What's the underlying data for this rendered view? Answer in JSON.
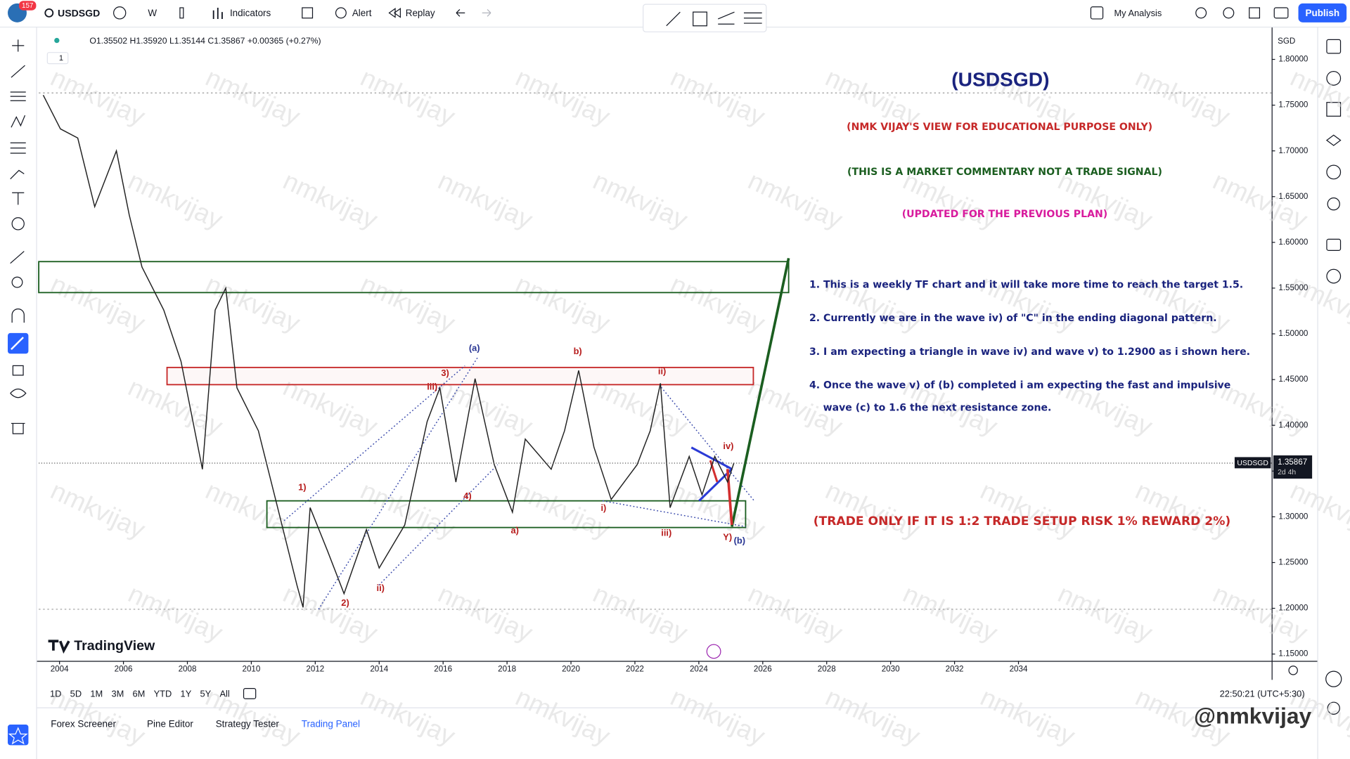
{
  "toolbar": {
    "notifications": "157",
    "symbol": "USDSGD",
    "interval": "W",
    "indicators": "Indicators",
    "alert": "Alert",
    "replay": "Replay",
    "layout": "My Analysis",
    "publish": "Publish"
  },
  "legend": {
    "ohlc": "O1.35502 H1.35920 L1.35144 C1.35867 +0.00365 (+0.27%)",
    "collapse": "1"
  },
  "chart_data": {
    "type": "line",
    "color": "#222222",
    "x": [
      2003.49,
      2004.03,
      2004.57,
      2005.1,
      2005.78,
      2006.18,
      2006.58,
      2007.26,
      2007.8,
      2008.47,
      2008.87,
      2009.2,
      2009.55,
      2010.22,
      2010.76,
      2011.43,
      2011.62,
      2011.84,
      2012.38,
      2012.9,
      2013.6,
      2014.0,
      2014.8,
      2015.5,
      2015.9,
      2016.4,
      2017.0,
      2017.6,
      2018.17,
      2018.57,
      2019.38,
      2019.8,
      2020.24,
      2020.72,
      2021.26,
      2022.07,
      2022.48,
      2022.8,
      2023.1,
      2023.7,
      2024.1,
      2024.5,
      2024.9,
      2025.1
    ],
    "values": [
      1.761,
      1.724,
      1.714,
      1.639,
      1.7,
      1.63,
      1.573,
      1.526,
      1.47,
      1.352,
      1.526,
      1.55,
      1.441,
      1.394,
      1.319,
      1.225,
      1.201,
      1.31,
      1.263,
      1.216,
      1.286,
      1.244,
      1.291,
      1.404,
      1.441,
      1.338,
      1.451,
      1.357,
      1.305,
      1.385,
      1.352,
      1.394,
      1.46,
      1.376,
      1.319,
      1.357,
      1.394,
      1.446,
      1.31,
      1.366,
      1.324,
      1.366,
      1.338,
      1.359
    ],
    "xlim": [
      2003.35,
      2041.92
    ],
    "ylim": [
      1.1425,
      1.832
    ],
    "xticks": [
      2004,
      2006,
      2008,
      2010,
      2012,
      2014,
      2016,
      2018,
      2020,
      2022,
      2024,
      2026,
      2028,
      2030,
      2032,
      2034
    ],
    "yticks": [
      {
        "value": 1.15,
        "label": "1.15000"
      },
      {
        "value": 1.2,
        "label": "1.20000"
      },
      {
        "value": 1.25,
        "label": "1.25000"
      },
      {
        "value": 1.3,
        "label": "1.30000"
      },
      {
        "value": 1.35,
        "label": "1.35000"
      },
      {
        "value": 1.4,
        "label": "1.40000"
      },
      {
        "value": 1.45,
        "label": "1.45000"
      },
      {
        "value": 1.5,
        "label": "1.50000"
      },
      {
        "value": 1.55,
        "label": "1.55000"
      },
      {
        "value": 1.6,
        "label": "1.60000"
      },
      {
        "value": 1.65,
        "label": "1.65000"
      },
      {
        "value": 1.7,
        "label": "1.70000"
      },
      {
        "value": 1.75,
        "label": "1.75000"
      },
      {
        "value": 1.8,
        "label": "1.80000"
      }
    ],
    "currency": "SGD",
    "last_symbol": "USDSGD",
    "last_price": 1.35867,
    "countdown": "2d 4h"
  },
  "commentary": {
    "title": "(USDSGD)",
    "disclaimer": "(NMK VIJAY'S VIEW FOR EDUCATIONAL PURPOSE ONLY)",
    "notice": "(THIS IS A MARKET COMMENTARY NOT A TRADE SIGNAL)",
    "update": "(UPDATED FOR THE PREVIOUS PLAN)",
    "points": [
      [
        "1. This is a weekly TF chart and it will take more time  to reach the target 1.5."
      ],
      [
        "2. Currently we are in the wave iv) of \"C\" in the ending diagonal pattern."
      ],
      [
        "3. I am expecting a triangle in wave iv) and wave v) to 1.2900 as i shown here."
      ],
      [
        "4. Once the wave v) of (b) completed i am expecting the fast and impulsive",
        "wave (c) to 1.6 the next resistance zone."
      ]
    ],
    "trade_rule": "(TRADE ONLY IF IT IS 1:2 TRADE SETUP RISK 1% REWARD 2%)"
  },
  "wave_labels": [
    "(a)",
    "b)",
    "ii)",
    "3)",
    "iii)",
    "1)",
    "4)",
    "2)",
    "ii)",
    "a)",
    "i)",
    "iii)",
    "iv)",
    "Y)",
    "(b)"
  ],
  "watermark": "nmkvijay",
  "brand": "TradingView",
  "timeframes": [
    "1D",
    "5D",
    "1M",
    "3M",
    "6M",
    "YTD",
    "1Y",
    "5Y",
    "All"
  ],
  "clock": "22:50:21 (UTC+5:30)",
  "bottom_tabs": [
    "Forex Screener",
    "Pine Editor",
    "Strategy Tester",
    "Trading Panel"
  ],
  "signature": "@nmkvijay"
}
